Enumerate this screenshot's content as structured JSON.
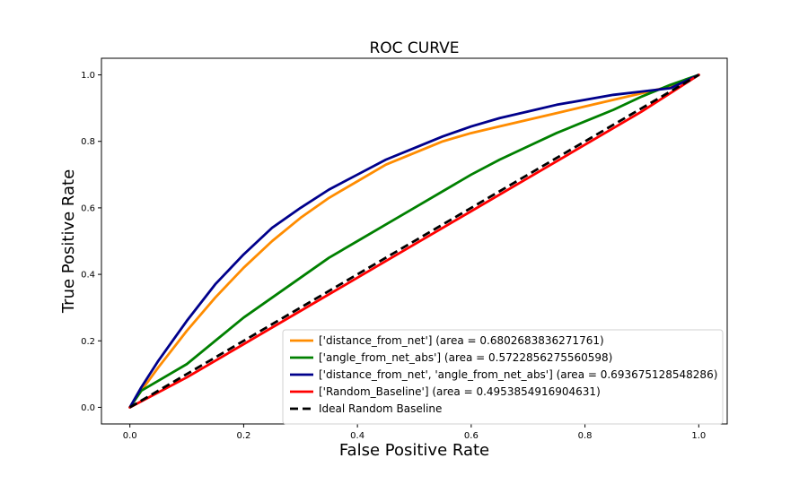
{
  "chart_data": {
    "type": "line",
    "title": "ROC CURVE",
    "xlabel": "False Positive Rate",
    "ylabel": "True Positive Rate",
    "xlim": [
      -0.05,
      1.05
    ],
    "ylim": [
      -0.05,
      1.05
    ],
    "xticks": [
      0.0,
      0.2,
      0.4,
      0.6,
      0.8,
      1.0
    ],
    "yticks": [
      0.0,
      0.2,
      0.4,
      0.6,
      0.8,
      1.0
    ],
    "xtick_labels": [
      "0.0",
      "0.2",
      "0.4",
      "0.6",
      "0.8",
      "1.0"
    ],
    "ytick_labels": [
      "0.0",
      "0.2",
      "0.4",
      "0.6",
      "0.8",
      "1.0"
    ],
    "grid": false,
    "legend_position": "lower-right",
    "series": [
      {
        "name": "['distance_from_net'] (area = 0.6802683836271761)",
        "color": "#ff8c00",
        "style": "solid",
        "x": [
          0.0,
          0.02,
          0.05,
          0.1,
          0.15,
          0.2,
          0.25,
          0.3,
          0.35,
          0.4,
          0.45,
          0.5,
          0.55,
          0.6,
          0.65,
          0.7,
          0.75,
          0.8,
          0.85,
          0.9,
          0.95,
          1.0
        ],
        "y": [
          0.0,
          0.05,
          0.12,
          0.23,
          0.33,
          0.42,
          0.5,
          0.57,
          0.63,
          0.68,
          0.73,
          0.765,
          0.8,
          0.825,
          0.845,
          0.865,
          0.885,
          0.905,
          0.925,
          0.945,
          0.965,
          1.0
        ]
      },
      {
        "name": "['angle_from_net_abs'] (area = 0.5722856275560598)",
        "color": "#008000",
        "style": "solid",
        "x": [
          0.0,
          0.02,
          0.05,
          0.1,
          0.15,
          0.2,
          0.25,
          0.3,
          0.35,
          0.4,
          0.45,
          0.5,
          0.55,
          0.6,
          0.65,
          0.7,
          0.75,
          0.8,
          0.85,
          0.9,
          0.95,
          1.0
        ],
        "y": [
          0.0,
          0.05,
          0.08,
          0.13,
          0.2,
          0.27,
          0.33,
          0.39,
          0.45,
          0.5,
          0.55,
          0.6,
          0.65,
          0.7,
          0.745,
          0.785,
          0.825,
          0.86,
          0.895,
          0.935,
          0.97,
          1.0
        ]
      },
      {
        "name": "['distance_from_net', 'angle_from_net_abs'] (area = 0.693675128548286)",
        "color": "#00008b",
        "style": "solid",
        "x": [
          0.0,
          0.02,
          0.05,
          0.1,
          0.15,
          0.2,
          0.25,
          0.3,
          0.35,
          0.4,
          0.45,
          0.5,
          0.55,
          0.6,
          0.65,
          0.7,
          0.75,
          0.8,
          0.85,
          0.9,
          0.95,
          1.0
        ],
        "y": [
          0.0,
          0.06,
          0.14,
          0.26,
          0.37,
          0.46,
          0.54,
          0.6,
          0.655,
          0.7,
          0.745,
          0.78,
          0.815,
          0.845,
          0.87,
          0.89,
          0.91,
          0.925,
          0.94,
          0.95,
          0.96,
          1.0
        ]
      },
      {
        "name": "['Random_Baseline'] (area = 0.4953854916904631)",
        "color": "#ff0000",
        "style": "solid",
        "x": [
          0.0,
          0.1,
          0.2,
          0.3,
          0.4,
          0.5,
          0.6,
          0.7,
          0.8,
          0.9,
          1.0
        ],
        "y": [
          0.0,
          0.09,
          0.19,
          0.29,
          0.39,
          0.49,
          0.59,
          0.69,
          0.79,
          0.89,
          1.0
        ]
      },
      {
        "name": "Ideal Random Baseline",
        "color": "#000000",
        "style": "dashed",
        "x": [
          0.0,
          1.0
        ],
        "y": [
          0.0,
          1.0
        ]
      }
    ]
  }
}
